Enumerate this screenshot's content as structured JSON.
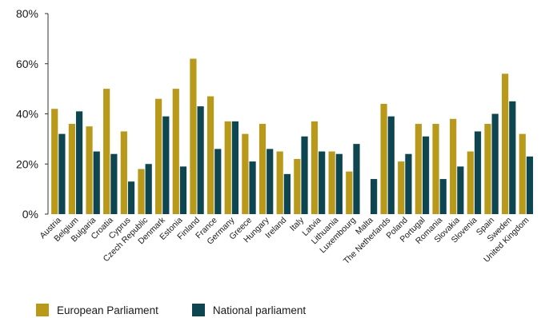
{
  "chart_data": {
    "type": "bar",
    "categories": [
      "Austria",
      "Belgium",
      "Bulgaria",
      "Croatia",
      "Cyprus",
      "Czech Republic",
      "Denmark",
      "Estonia",
      "Finland",
      "France",
      "Germany",
      "Greece",
      "Hungary",
      "Ireland",
      "Italy",
      "Latvia",
      "Lithuania",
      "Luxembourg",
      "Malta",
      "The Netherlands",
      "Poland",
      "Portugal",
      "Romania",
      "Slovakia",
      "Slovenia",
      "Spain",
      "Sweden",
      "United Kingdom"
    ],
    "series": [
      {
        "name": "European Parliament",
        "color": "#b8991a",
        "values": [
          42,
          36,
          35,
          50,
          33,
          18,
          46,
          50,
          62,
          47,
          37,
          32,
          36,
          25,
          22,
          37,
          25,
          17,
          0,
          44,
          21,
          36,
          36,
          38,
          25,
          36,
          56,
          32
        ]
      },
      {
        "name": "National parliament",
        "color": "#0d4650",
        "values": [
          32,
          41,
          25,
          24,
          13,
          20,
          39,
          19,
          43,
          26,
          37,
          21,
          26,
          16,
          31,
          25,
          24,
          28,
          14,
          39,
          24,
          31,
          14,
          19,
          33,
          40,
          45,
          23
        ]
      }
    ],
    "yticks": [
      "0%",
      "20%",
      "40%",
      "60%",
      "80%"
    ],
    "ylim": [
      0,
      80
    ],
    "grid": false,
    "legend_position": "bottom-left"
  }
}
